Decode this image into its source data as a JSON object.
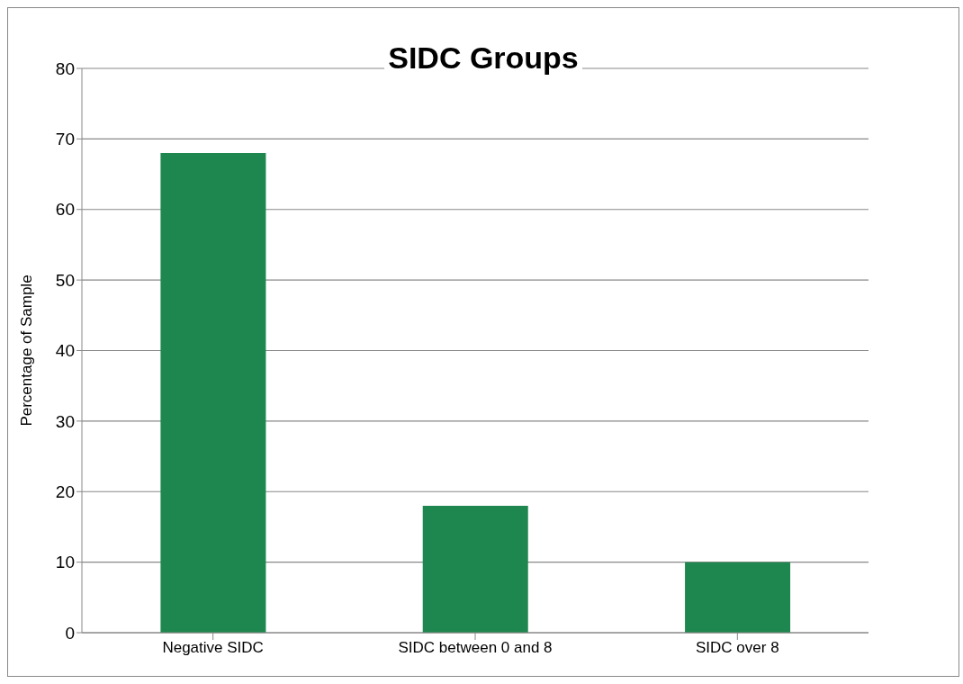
{
  "chart_data": {
    "type": "bar",
    "title": "SIDC Groups",
    "ylabel": "Percentage of Sample",
    "categories": [
      "Negative SIDC",
      "SIDC between 0 and 8",
      "SIDC over 8"
    ],
    "values": [
      68,
      18,
      10
    ],
    "color": "#1d874f",
    "ylim": [
      0,
      80
    ],
    "yticks": [
      0,
      10,
      20,
      30,
      40,
      50,
      60,
      70,
      80
    ],
    "grid": "y",
    "legend": false
  }
}
